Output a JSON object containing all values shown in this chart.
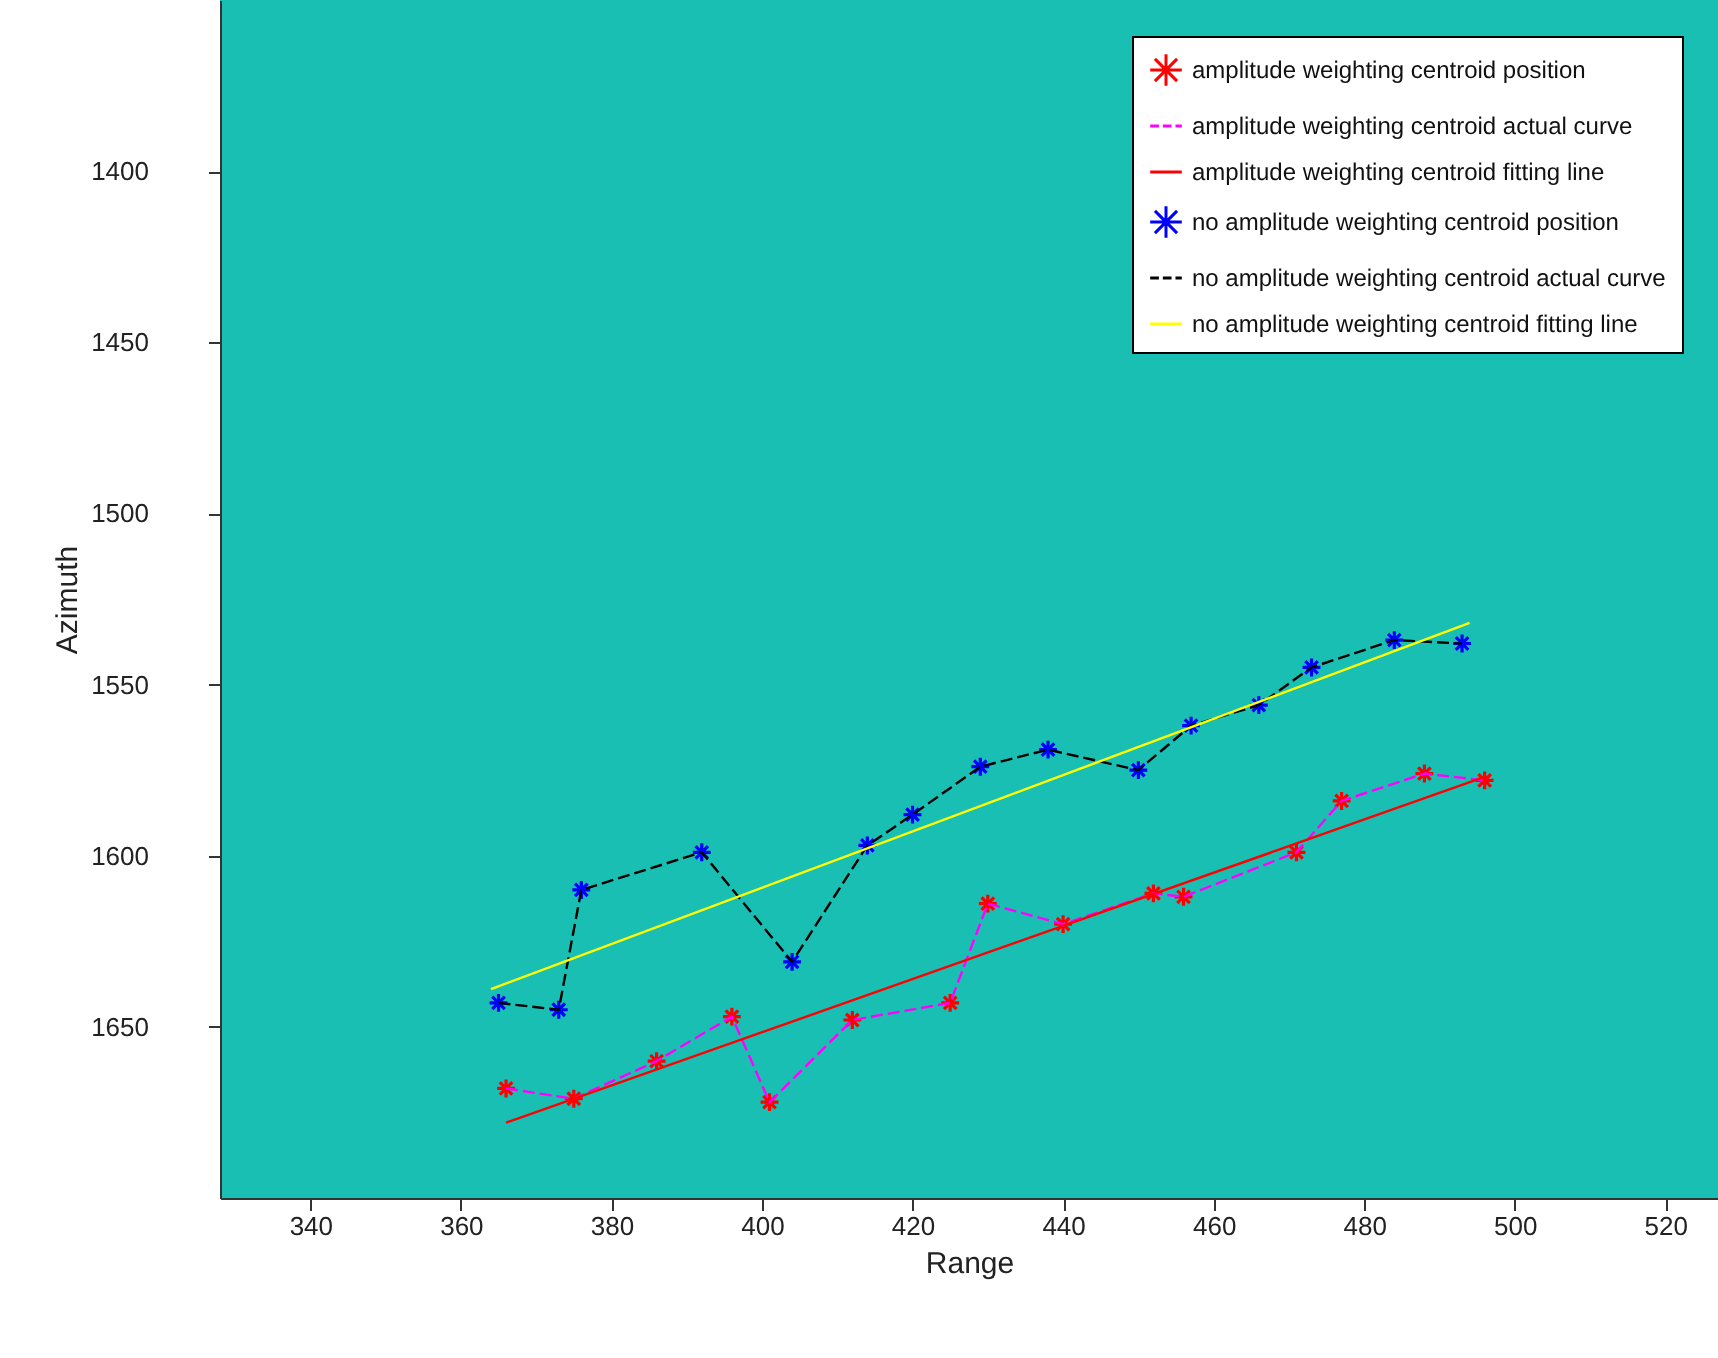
{
  "chart_data": {
    "type": "line",
    "xlabel": "Range",
    "ylabel": "Azimuth",
    "xlim": [
      328,
      527
    ],
    "ylim": [
      1700,
      1350
    ],
    "xticks": [
      340,
      360,
      380,
      400,
      420,
      440,
      460,
      480,
      500,
      520
    ],
    "yticks": [
      1400,
      1450,
      1500,
      1550,
      1600,
      1650
    ],
    "grid": false,
    "legend": "top right",
    "series": [
      {
        "name": "amplitude weighting centroid position",
        "type": "scatter",
        "marker": "cross",
        "color": "#ff0000",
        "x": [
          366,
          375,
          386,
          396,
          401,
          412,
          425,
          430,
          440,
          452,
          456,
          471,
          477,
          488,
          496
        ],
        "values": [
          1668,
          1671,
          1660,
          1647,
          1672,
          1648,
          1643,
          1614,
          1620,
          1611,
          1612,
          1599,
          1584,
          1576,
          1578
        ]
      },
      {
        "name": "amplitude weighting centroid actual curve",
        "type": "line",
        "marker": "none",
        "line_style": "dashed",
        "color": "#ff00ff",
        "x": [
          366,
          375,
          386,
          396,
          401,
          412,
          425,
          430,
          440,
          452,
          456,
          471,
          477,
          488,
          496
        ],
        "values": [
          1668,
          1671,
          1660,
          1647,
          1672,
          1648,
          1643,
          1614,
          1620,
          1611,
          1612,
          1599,
          1584,
          1576,
          1578
        ]
      },
      {
        "name": "amplitude weighting centroid fitting line",
        "type": "line",
        "marker": "none",
        "line_style": "solid",
        "color": "#ff0000",
        "x": [
          366,
          496
        ],
        "values": [
          1678,
          1577
        ]
      },
      {
        "name": "no amplitude weighting centroid position",
        "type": "scatter",
        "marker": "cross",
        "color": "#0000ff",
        "x": [
          365,
          373,
          376,
          392,
          404,
          414,
          420,
          429,
          438,
          450,
          457,
          466,
          473,
          484,
          493
        ],
        "values": [
          1643,
          1645,
          1610,
          1599,
          1631,
          1597,
          1588,
          1574,
          1569,
          1575,
          1562,
          1556,
          1545,
          1537,
          1538
        ]
      },
      {
        "name": "no amplitude weighting centroid actual curve",
        "type": "line",
        "marker": "none",
        "line_style": "dashed",
        "color": "#000000",
        "x": [
          365,
          373,
          376,
          392,
          404,
          414,
          420,
          429,
          438,
          450,
          457,
          466,
          473,
          484,
          493
        ],
        "values": [
          1643,
          1645,
          1610,
          1599,
          1631,
          1597,
          1588,
          1574,
          1569,
          1575,
          1562,
          1556,
          1545,
          1537,
          1538
        ]
      },
      {
        "name": "no amplitude weighting centroid fitting line",
        "type": "line",
        "marker": "none",
        "line_style": "solid",
        "color": "#ffff00",
        "x": [
          364,
          494
        ],
        "values": [
          1639,
          1532
        ]
      }
    ]
  }
}
